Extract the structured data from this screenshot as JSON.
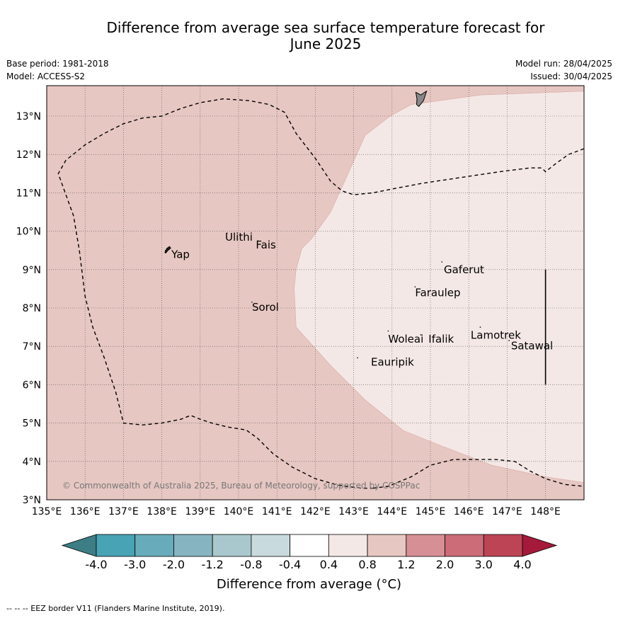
{
  "title_line1": "Difference from average sea surface temperature forecast for",
  "title_line2": "June 2025",
  "meta_left": [
    "Base period: 1981-2018",
    "Model: ACCESS-S2"
  ],
  "meta_right": [
    "Model run: 28/04/2025",
    "Issued: 30/04/2025"
  ],
  "map": {
    "lon_range": [
      135,
      149
    ],
    "lat_range": [
      3,
      13.8
    ],
    "lon_ticks": [
      {
        "value": 135,
        "label": "135°E"
      },
      {
        "value": 136,
        "label": "136°E"
      },
      {
        "value": 137,
        "label": "137°E"
      },
      {
        "value": 138,
        "label": "138°E"
      },
      {
        "value": 139,
        "label": "139°E"
      },
      {
        "value": 140,
        "label": "140°E"
      },
      {
        "value": 141,
        "label": "141°E"
      },
      {
        "value": 142,
        "label": "142°E"
      },
      {
        "value": 143,
        "label": "143°E"
      },
      {
        "value": 144,
        "label": "144°E"
      },
      {
        "value": 145,
        "label": "145°E"
      },
      {
        "value": 146,
        "label": "146°E"
      },
      {
        "value": 147,
        "label": "147°E"
      },
      {
        "value": 148,
        "label": "148°E"
      }
    ],
    "lat_ticks": [
      {
        "value": 3,
        "label": "3°N"
      },
      {
        "value": 4,
        "label": "4°N"
      },
      {
        "value": 5,
        "label": "5°N"
      },
      {
        "value": 6,
        "label": "6°N"
      },
      {
        "value": 7,
        "label": "7°N"
      },
      {
        "value": 8,
        "label": "8°N"
      },
      {
        "value": 9,
        "label": "9°N"
      },
      {
        "value": 10,
        "label": "10°N"
      },
      {
        "value": 11,
        "label": "11°N"
      },
      {
        "value": 12,
        "label": "12°N"
      },
      {
        "value": 13,
        "label": "13°N"
      }
    ],
    "background_category": "0.8 to 1.2",
    "background_color": "#e7c7c2",
    "region_category": "0.4 to 0.8",
    "region_color": "#f4e8e6",
    "light_region_boundary": [
      [
        149,
        13.65
      ],
      [
        146.3,
        13.55
      ],
      [
        144.5,
        13.3
      ],
      [
        143.95,
        13.0
      ],
      [
        143.3,
        12.5
      ],
      [
        142.9,
        11.6
      ],
      [
        142.4,
        10.5
      ],
      [
        141.9,
        9.8
      ],
      [
        141.65,
        9.55
      ],
      [
        141.5,
        9.0
      ],
      [
        141.45,
        8.5
      ],
      [
        141.5,
        7.5
      ],
      [
        142.4,
        6.5
      ],
      [
        143.3,
        5.6
      ],
      [
        144.3,
        4.8
      ],
      [
        145.3,
        4.4
      ],
      [
        146.6,
        3.9
      ],
      [
        148.0,
        3.6
      ],
      [
        149,
        3.45
      ]
    ],
    "eez_border_segments": [
      [
        [
          143.5,
          3.3
        ],
        [
          143.9,
          3.35
        ],
        [
          144.5,
          3.6
        ],
        [
          145.0,
          3.9
        ],
        [
          145.6,
          4.05
        ],
        [
          146.2,
          4.05
        ],
        [
          146.7,
          4.05
        ],
        [
          147.2,
          4.0
        ],
        [
          147.6,
          3.75
        ],
        [
          148.0,
          3.55
        ],
        [
          148.5,
          3.4
        ],
        [
          149,
          3.35
        ]
      ],
      [
        [
          149,
          12.15
        ],
        [
          148.6,
          12.0
        ],
        [
          148.25,
          11.75
        ],
        [
          148.0,
          11.55
        ],
        [
          147.9,
          11.65
        ],
        [
          147.6,
          11.65
        ],
        [
          146.8,
          11.55
        ],
        [
          145.8,
          11.4
        ],
        [
          144.8,
          11.25
        ],
        [
          144.0,
          11.1
        ],
        [
          143.5,
          11.0
        ],
        [
          143.0,
          10.95
        ],
        [
          142.7,
          11.05
        ],
        [
          142.4,
          11.3
        ],
        [
          142.0,
          11.9
        ],
        [
          141.5,
          12.55
        ],
        [
          141.2,
          13.1
        ],
        [
          140.8,
          13.3
        ],
        [
          140.3,
          13.4
        ],
        [
          139.6,
          13.45
        ],
        [
          139.0,
          13.35
        ],
        [
          138.5,
          13.2
        ],
        [
          138.0,
          13.0
        ],
        [
          137.5,
          12.95
        ],
        [
          137.0,
          12.8
        ],
        [
          136.5,
          12.55
        ],
        [
          136.0,
          12.25
        ],
        [
          135.5,
          11.85
        ],
        [
          135.3,
          11.5
        ],
        [
          135.7,
          10.4
        ],
        [
          135.85,
          9.5
        ],
        [
          136.0,
          8.3
        ],
        [
          136.2,
          7.5
        ],
        [
          136.5,
          6.7
        ],
        [
          136.8,
          5.8
        ],
        [
          137.0,
          5.0
        ],
        [
          137.5,
          4.95
        ],
        [
          138.0,
          5.0
        ],
        [
          138.5,
          5.1
        ],
        [
          138.75,
          5.2
        ],
        [
          139.0,
          5.1
        ],
        [
          139.3,
          5.0
        ],
        [
          139.7,
          4.9
        ],
        [
          140.2,
          4.82
        ],
        [
          140.5,
          4.6
        ],
        [
          140.9,
          4.2
        ],
        [
          141.4,
          3.85
        ],
        [
          142.0,
          3.55
        ],
        [
          142.6,
          3.38
        ],
        [
          143.2,
          3.3
        ],
        [
          143.5,
          3.3
        ]
      ]
    ],
    "longitude_marker": {
      "lon": 148.0,
      "lat_from": 6.0,
      "lat_to": 9.0
    },
    "land": [
      {
        "name": "Yap",
        "outline": [
          [
            138.08,
            9.45
          ],
          [
            138.13,
            9.55
          ],
          [
            138.2,
            9.6
          ],
          [
            138.23,
            9.56
          ],
          [
            138.16,
            9.5
          ],
          [
            138.1,
            9.43
          ]
        ]
      },
      {
        "name": "Guam",
        "outline": [
          [
            144.62,
            13.62
          ],
          [
            144.75,
            13.55
          ],
          [
            144.85,
            13.62
          ],
          [
            144.9,
            13.65
          ],
          [
            144.82,
            13.4
          ],
          [
            144.7,
            13.25
          ],
          [
            144.64,
            13.3
          ],
          [
            144.65,
            13.45
          ]
        ]
      }
    ],
    "places": [
      {
        "name": "Yap",
        "lon": 138.1,
        "lat": 9.5,
        "label_lon": 138.25,
        "label_lat": 9.3
      },
      {
        "name": "Ulithi",
        "lon": 139.7,
        "lat": 9.95,
        "label_lon": 139.65,
        "label_lat": 9.75
      },
      {
        "name": "Fais",
        "lon": 140.5,
        "lat": 9.75,
        "label_lon": 140.45,
        "label_lat": 9.55
      },
      {
        "name": "Sorol",
        "lon": 140.35,
        "lat": 8.15,
        "label_lon": 140.35,
        "label_lat": 7.93
      },
      {
        "name": "Gaferut",
        "lon": 145.3,
        "lat": 9.2,
        "label_lon": 145.35,
        "label_lat": 8.9
      },
      {
        "name": "Faraulep",
        "lon": 144.6,
        "lat": 8.55,
        "label_lon": 144.6,
        "label_lat": 8.3
      },
      {
        "name": "Woleai",
        "lon": 143.9,
        "lat": 7.4,
        "label_lon": 143.9,
        "label_lat": 7.1
      },
      {
        "name": "Ifalik",
        "lon": 144.75,
        "lat": 7.3,
        "label_lon": 144.95,
        "label_lat": 7.1
      },
      {
        "name": "Lamotrek",
        "lon": 146.3,
        "lat": 7.5,
        "label_lon": 146.05,
        "label_lat": 7.2
      },
      {
        "name": "Satawal",
        "lon": 147.05,
        "lat": 7.15,
        "label_lon": 147.1,
        "label_lat": 6.92
      },
      {
        "name": "Eauripik",
        "lon": 143.1,
        "lat": 6.7,
        "label_lon": 143.45,
        "label_lat": 6.5
      }
    ],
    "copyright": "© Commonwealth of Australia 2025, Bureau of Meteorology, supported by COSPPac"
  },
  "colorbar": {
    "labels": [
      "-4.0",
      "-3.0",
      "-2.0",
      "-1.2",
      "-0.8",
      "-0.4",
      "0.4",
      "0.8",
      "1.2",
      "2.0",
      "3.0",
      "4.0"
    ],
    "colors": [
      "#48a3b4",
      "#68acbb",
      "#86b5c1",
      "#a8c8cd",
      "#c9dade",
      "#ffffff",
      "#f4e8e6",
      "#e7c7c2",
      "#d78f96",
      "#cb6c78",
      "#bd4455"
    ],
    "under_color": "#3d7d85",
    "over_color": "#a51a3a",
    "title": "Difference from average (°C)"
  },
  "footnote": "--  --  -- EEZ border V11 (Flanders Marine Institute, 2019)."
}
